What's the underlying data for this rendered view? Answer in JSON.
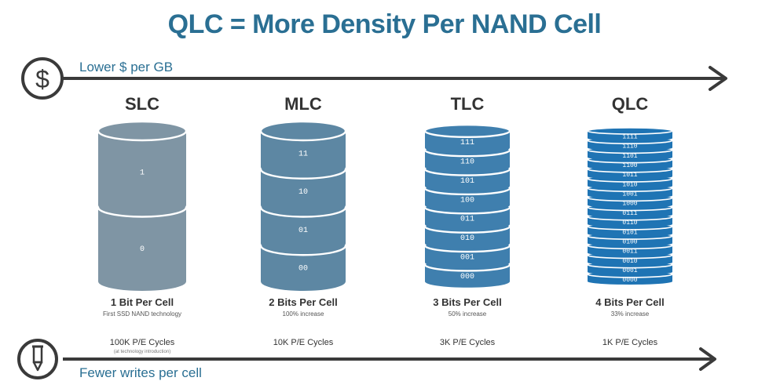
{
  "title": "QLC = More Density Per NAND Cell",
  "top_axis": {
    "label": "Lower $ per GB",
    "icon": "dollar-icon"
  },
  "bottom_axis": {
    "label": "Fewer writes per cell",
    "icon": "pencil-icon"
  },
  "columns": [
    {
      "name": "SLC",
      "states": [
        "1",
        "0"
      ],
      "bits_label": "1 Bit Per Cell",
      "bits_sub": "First SSD NAND technology",
      "pe_cycles": "100K P/E Cycles",
      "pe_note": "(at technology introduction)",
      "color": "#7f95a4"
    },
    {
      "name": "MLC",
      "states": [
        "11",
        "10",
        "01",
        "00"
      ],
      "bits_label": "2 Bits Per Cell",
      "bits_sub": "100% increase",
      "pe_cycles": "10K P/E Cycles",
      "pe_note": "",
      "color": "#5d87a3"
    },
    {
      "name": "TLC",
      "states": [
        "111",
        "110",
        "101",
        "100",
        "011",
        "010",
        "001",
        "000"
      ],
      "bits_label": "3 Bits Per Cell",
      "bits_sub": "50% increase",
      "pe_cycles": "3K P/E Cycles",
      "pe_note": "",
      "color": "#3f7fae"
    },
    {
      "name": "QLC",
      "states": [
        "1111",
        "1110",
        "1101",
        "1100",
        "1011",
        "1010",
        "1001",
        "1000",
        "0111",
        "0110",
        "0101",
        "0100",
        "0011",
        "0010",
        "0001",
        "0000"
      ],
      "bits_label": "4 Bits Per Cell",
      "bits_sub": "33% increase",
      "pe_cycles": "1K P/E Cycles",
      "pe_note": "",
      "color": "#1f74b4"
    }
  ],
  "colors": {
    "title": "#2a6f93",
    "axis": "#3a3a3a"
  }
}
